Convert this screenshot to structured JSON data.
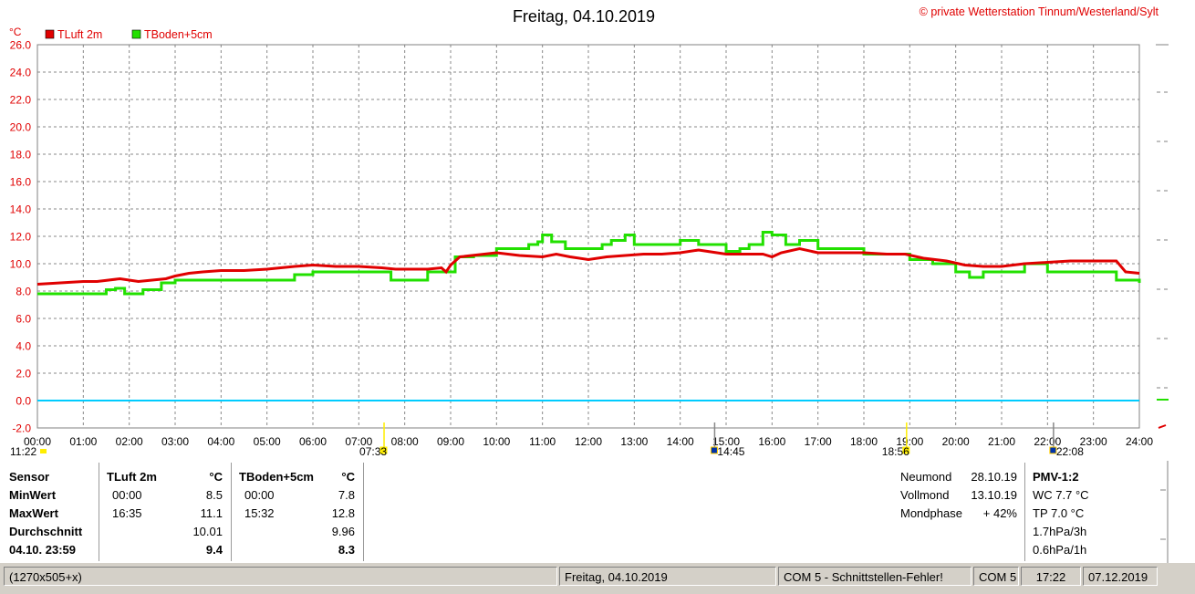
{
  "header": {
    "title": "Freitag, 04.10.2019",
    "copyright": "© private Wetterstation Tinnum/Westerland/Sylt"
  },
  "colors": {
    "tluft": "#e00000",
    "tboden": "#22e000",
    "zero_line": "#00ccff",
    "grid": "#888888"
  },
  "chart_data": {
    "type": "line",
    "yunit": "°C",
    "ylim": [
      -2.0,
      26.0
    ],
    "yticks": [
      "26.0",
      "24.0",
      "22.0",
      "20.0",
      "18.0",
      "16.0",
      "14.0",
      "12.0",
      "10.0",
      "8.0",
      "6.0",
      "4.0",
      "2.0",
      "0.0",
      "-2.0"
    ],
    "xlim": [
      0,
      24
    ],
    "xticks": [
      "00:00",
      "01:00",
      "02:00",
      "03:00",
      "04:00",
      "05:00",
      "06:00",
      "07:00",
      "08:00",
      "09:00",
      "10:00",
      "11:00",
      "12:00",
      "13:00",
      "14:00",
      "15:00",
      "16:00",
      "17:00",
      "18:00",
      "19:00",
      "20:00",
      "21:00",
      "22:00",
      "23:00",
      "24:00"
    ],
    "grid": true,
    "legend_position": "top-left",
    "series": [
      {
        "name": "TLuft 2m",
        "color": "#e00000",
        "x": [
          0,
          0.5,
          1,
          1.3,
          1.8,
          2.2,
          2.5,
          2.8,
          3,
          3.3,
          3.6,
          4,
          4.5,
          5,
          5.3,
          5.6,
          6,
          6.5,
          7,
          7.5,
          7.8,
          8,
          8.5,
          8.8,
          8.9,
          9,
          9.2,
          10,
          10.5,
          11,
          11.3,
          11.6,
          12,
          12.4,
          12.8,
          13.2,
          13.6,
          14,
          14.4,
          14.8,
          15,
          15.4,
          15.8,
          16,
          16.2,
          16.6,
          17,
          17.5,
          18,
          18.5,
          18.9,
          19.3,
          19.8,
          20.2,
          20.6,
          21,
          21.5,
          22,
          22.5,
          23,
          23.5,
          23.7,
          24
        ],
        "y": [
          8.5,
          8.6,
          8.7,
          8.7,
          8.9,
          8.7,
          8.8,
          8.9,
          9.1,
          9.3,
          9.4,
          9.5,
          9.5,
          9.6,
          9.7,
          9.8,
          9.9,
          9.8,
          9.8,
          9.7,
          9.6,
          9.6,
          9.6,
          9.7,
          9.4,
          9.9,
          10.5,
          10.8,
          10.6,
          10.5,
          10.7,
          10.5,
          10.3,
          10.5,
          10.6,
          10.7,
          10.7,
          10.8,
          11.0,
          10.8,
          10.7,
          10.7,
          10.7,
          10.5,
          10.8,
          11.1,
          10.8,
          10.8,
          10.8,
          10.7,
          10.7,
          10.4,
          10.2,
          9.9,
          9.8,
          9.8,
          10.0,
          10.1,
          10.2,
          10.2,
          10.2,
          9.4,
          9.3
        ]
      },
      {
        "name": "TBoden+5cm",
        "color": "#22e000",
        "x": [
          0,
          1.4,
          1.5,
          1.7,
          1.9,
          2.1,
          2.3,
          2.7,
          3,
          4,
          5,
          5.3,
          5.6,
          6,
          6.5,
          7,
          7.3,
          7.5,
          7.7,
          8,
          8.5,
          8.9,
          9.1,
          9.5,
          10,
          10.5,
          10.7,
          10.9,
          11,
          11.2,
          11.5,
          12,
          12.3,
          12.5,
          12.8,
          13,
          13.3,
          13.6,
          14,
          14.4,
          14.8,
          15,
          15.3,
          15.5,
          15.8,
          16,
          16.3,
          16.6,
          17,
          17.5,
          18,
          18.5,
          19,
          19.5,
          20,
          20.3,
          20.6,
          21,
          21.5,
          22,
          22.5,
          23,
          23.5,
          24
        ],
        "y": [
          7.8,
          7.8,
          8.1,
          8.2,
          7.8,
          7.8,
          8.1,
          8.6,
          8.8,
          8.8,
          8.8,
          8.8,
          9.2,
          9.4,
          9.4,
          9.4,
          9.4,
          9.4,
          8.8,
          8.8,
          9.4,
          9.4,
          10.5,
          10.6,
          11.1,
          11.1,
          11.4,
          11.6,
          12.1,
          11.6,
          11.1,
          11.1,
          11.4,
          11.7,
          12.1,
          11.4,
          11.4,
          11.4,
          11.7,
          11.4,
          11.4,
          10.9,
          11.1,
          11.4,
          12.3,
          12.1,
          11.4,
          11.7,
          11.1,
          11.1,
          10.7,
          10.7,
          10.3,
          10.0,
          9.4,
          9.0,
          9.4,
          9.4,
          10.0,
          9.4,
          9.4,
          9.4,
          8.8,
          8.6
        ]
      }
    ],
    "markers": [
      {
        "x": 7.55,
        "label": "07:33",
        "color": "#ffee00"
      },
      {
        "x": 14.75,
        "label": "14:45",
        "color": "#0033aa"
      },
      {
        "x": 18.93,
        "label": "18:56",
        "color": "#ffee00"
      },
      {
        "x": 22.13,
        "label": "22:08",
        "color": "#0033aa"
      }
    ],
    "marker_extra": {
      "label": "11:22"
    }
  },
  "info": {
    "sensor_label": "Sensor",
    "min_label": "MinWert",
    "max_label": "MaxWert",
    "avg_label": "Durchschnitt",
    "current_label": "04.10. 23:59",
    "tluft": {
      "name": "TLuft 2m",
      "unit": "°C",
      "min_time": "00:00",
      "min": "8.5",
      "max_time": "16:35",
      "max": "11.1",
      "avg": "10.01",
      "current": "9.4"
    },
    "tboden": {
      "name": "TBoden+5cm",
      "unit": "°C",
      "min_time": "00:00",
      "min": "7.8",
      "max_time": "15:32",
      "max": "12.8",
      "avg": "9.96",
      "current": "8.3"
    },
    "moon": {
      "neumond_label": "Neumond",
      "neumond": "28.10.19",
      "vollmond_label": "Vollmond",
      "vollmond": "13.10.19",
      "phase_label": "Mondphase",
      "phase": "+ 42%"
    },
    "pmv": {
      "title": "PMV-1:2",
      "wc": "WC 7.7 °C",
      "tp": "TP 7.0 °C",
      "p3h": "1.7hPa/3h",
      "p1h": "0.6hPa/1h"
    }
  },
  "statusbar": {
    "size": "(1270x505+x)",
    "date": "Freitag, 04.10.2019",
    "error": "COM 5 - Schnittstellen-Fehler!",
    "port": "COM 5",
    "time": "17:22",
    "today": "07.12.2019"
  }
}
